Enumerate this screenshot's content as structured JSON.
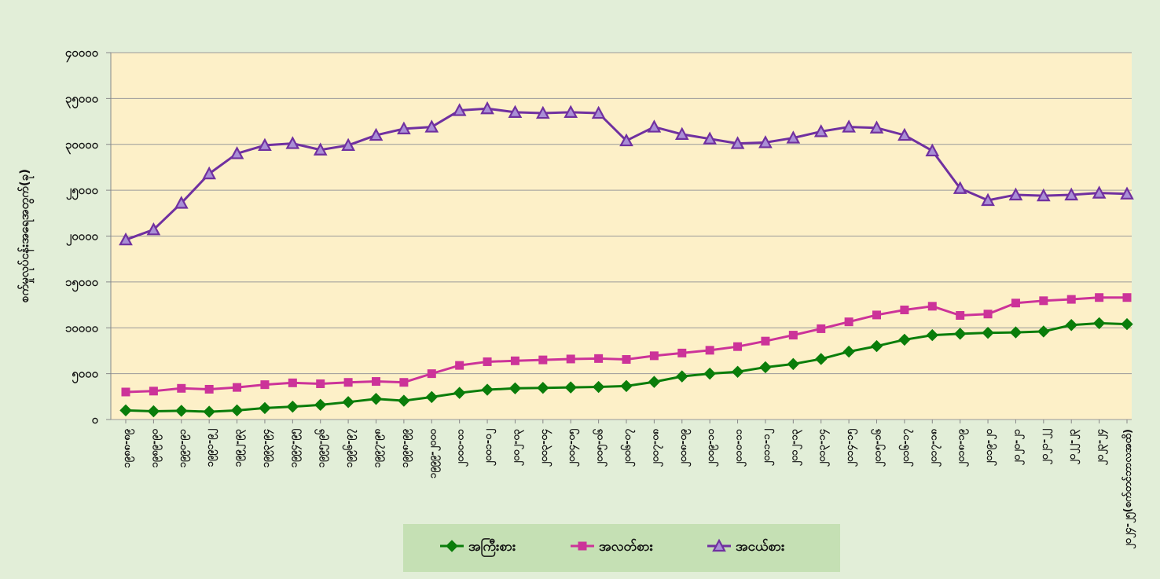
{
  "chart_data": {
    "type": "line",
    "title": "",
    "xlabel": "",
    "ylabel": "စက်မှုလုပ်ငန်းအရေအတွက်(ခု)",
    "ylim": [
      0,
      40000
    ],
    "yticks": [
      "၀",
      "၅၀၀၀",
      "၁၀၀၀၀",
      "၁၅၀၀၀",
      "၂၀၀၀၀",
      "၂၅၀၀၀",
      "၃၀၀၀၀",
      "၃၅၀၀၀",
      "၄၀၀၀၀"
    ],
    "yticks_values": [
      0,
      5000,
      10000,
      15000,
      20000,
      25000,
      30000,
      35000,
      40000
    ],
    "grid": true,
    "legend_position": "bottom-center",
    "categories": [
      "၁၉၈၈-၈၉",
      "၁၉၈၉-၉၀",
      "၁၉၉၀-၉၁",
      "၁၉၉၁-၉၂",
      "၁၉၉၂-၉၃",
      "၁၉၉၃-၉၄",
      "၁၉၉၄-၉၅",
      "၁၉၉၅-၉၆",
      "၁၉၉၆-၉၇",
      "၁၉၉၇-၉၈",
      "၁၉၉၈-၉၉",
      "၁၉၉၉-၂၀၀၀",
      "၂၀၀၀-၀၁",
      "၂၀၀၁-၀၂",
      "၂၀၀၂-၀၃",
      "၂၀၀၃-၀၄",
      "၂၀၀၄-၀၅",
      "၂၀၀၅-၀၆",
      "၂၀၀၆-၀၇",
      "၂၀၀၇-၀၈",
      "၂၀၀၈-၀၉",
      "၂၀၀၉-၁၀",
      "၂၀၁၀-၁၁",
      "၂၀၁၁-၁၂",
      "၂၀၁၂-၁၃",
      "၂၀၁၃-၁၄",
      "၂၀၁၄-၁၅",
      "၂၀၁၅-၁၆",
      "၂၀၁၆-၁၇",
      "၂၀၁၇-၁၈",
      "၂၀၁၈-၁၉",
      "၂၀၁၉-၂၀",
      "၂၀၂၀-၂၁",
      "၂၀၂၁-၂၂",
      "၂၀၂၂-၂၃",
      "၂၀၂၃-၂၄",
      "၂၀၂၄-၂၅(စက်တင်ဘာလအထိ)"
    ],
    "series": [
      {
        "name": "အကြီးစား",
        "color": "#0a7d0a",
        "marker": "diamond",
        "values": [
          1000,
          900,
          950,
          850,
          1000,
          1250,
          1400,
          1600,
          1900,
          2250,
          2050,
          2450,
          2900,
          3250,
          3400,
          3450,
          3500,
          3550,
          3650,
          4100,
          4700,
          5000,
          5200,
          5700,
          6050,
          6600,
          7400,
          8000,
          8700,
          9200,
          9350,
          9450,
          9500,
          9600,
          10300,
          10500,
          10400
        ]
      },
      {
        "name": "အလတ်စား",
        "color": "#cc3399",
        "marker": "square",
        "values": [
          3000,
          3100,
          3400,
          3300,
          3500,
          3800,
          4000,
          3900,
          4050,
          4150,
          4050,
          5000,
          5900,
          6300,
          6400,
          6500,
          6600,
          6650,
          6550,
          6950,
          7250,
          7550,
          7950,
          8550,
          9200,
          9900,
          10650,
          11400,
          11950,
          12350,
          11350,
          11500,
          12700,
          12950,
          13100,
          13300,
          13300
        ]
      },
      {
        "name": "အငယ်စား",
        "color": "#7030a0",
        "marker": "triangle",
        "values": [
          19600,
          20700,
          23600,
          26800,
          29000,
          29900,
          30100,
          29400,
          29900,
          31000,
          31700,
          31900,
          33700,
          33900,
          33500,
          33400,
          33500,
          33400,
          30400,
          31900,
          31100,
          30600,
          30100,
          30200,
          30700,
          31400,
          31900,
          31800,
          31000,
          29300,
          25200,
          23900,
          24500,
          24400,
          24500,
          24700,
          24600
        ]
      }
    ]
  }
}
